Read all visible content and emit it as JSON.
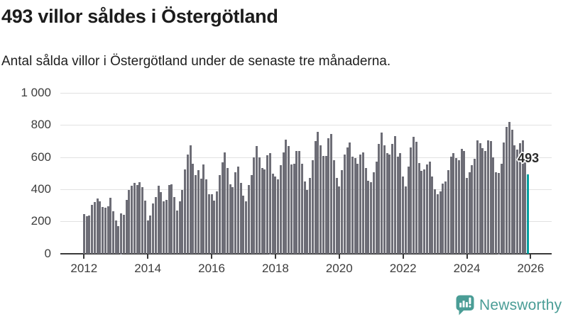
{
  "header": {
    "title": "493 villor såldes i Östergötland",
    "subtitle": "Antal sålda villor i Östergötland under de senaste tre månaderna."
  },
  "chart_data": {
    "type": "bar",
    "title": "493 villor såldes i Östergötland",
    "subtitle": "Antal sålda villor i Östergötland under de senaste tre månaderna.",
    "x_monthly_start": "2012-01",
    "x_monthly_end": "2025-12",
    "ylim": [
      0,
      1000
    ],
    "grid": "horizontal",
    "legend": "none",
    "bar_color": "#6d6d76",
    "y_ticks": [
      {
        "value": 0,
        "label": "0"
      },
      {
        "value": 200,
        "label": "200"
      },
      {
        "value": 400,
        "label": "400"
      },
      {
        "value": 600,
        "label": "600"
      },
      {
        "value": 800,
        "label": "800"
      },
      {
        "value": 1000,
        "label": "1 000"
      }
    ],
    "x_ticks": [
      "2012",
      "2014",
      "2016",
      "2018",
      "2020",
      "2022",
      "2024",
      "2026"
    ],
    "values": [
      245,
      230,
      238,
      303,
      322,
      340,
      324,
      290,
      284,
      295,
      345,
      262,
      205,
      170,
      250,
      240,
      335,
      395,
      420,
      440,
      424,
      445,
      415,
      330,
      205,
      235,
      310,
      350,
      420,
      381,
      326,
      335,
      425,
      430,
      350,
      268,
      325,
      395,
      525,
      615,
      675,
      560,
      490,
      520,
      465,
      555,
      460,
      370,
      367,
      328,
      385,
      488,
      566,
      630,
      534,
      430,
      414,
      505,
      540,
      440,
      360,
      325,
      425,
      490,
      600,
      668,
      600,
      530,
      524,
      610,
      625,
      495,
      480,
      460,
      548,
      630,
      708,
      668,
      553,
      558,
      640,
      640,
      558,
      450,
      393,
      470,
      582,
      698,
      756,
      675,
      606,
      606,
      718,
      742,
      582,
      470,
      418,
      520,
      616,
      660,
      690,
      602,
      592,
      558,
      616,
      630,
      534,
      454,
      442,
      505,
      573,
      684,
      752,
      675,
      624,
      616,
      684,
      730,
      602,
      624,
      480,
      418,
      540,
      660,
      726,
      694,
      563,
      515,
      524,
      553,
      570,
      480,
      399,
      369,
      388,
      436,
      447,
      519,
      602,
      624,
      592,
      582,
      650,
      640,
      470,
      505,
      549,
      590,
      705,
      685,
      655,
      639,
      705,
      700,
      600,
      505,
      500,
      560,
      690,
      790,
      820,
      770,
      673,
      645,
      685,
      705,
      577,
      493
    ],
    "highlight": {
      "index": 167,
      "value": 493,
      "label": "493",
      "color": "#00a0a0"
    }
  },
  "footer": {
    "brand": "Newsworthy",
    "brand_color": "#4a9d96",
    "logo_icon": "newsworthy-speech-bubble-bar-chart-icon"
  }
}
